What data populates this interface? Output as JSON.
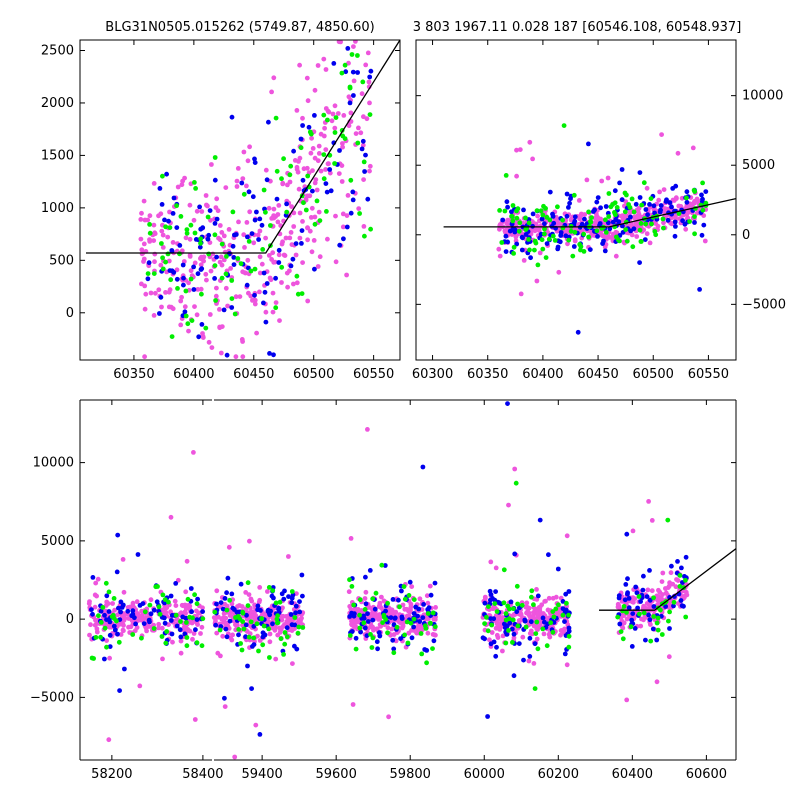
{
  "title_left": "BLG31N0505.015262 (5749.87, 4850.60)",
  "title_right": "3 803 1967.11 0.028 187 [60546.108, 60548.937]",
  "colors": {
    "blue": "#0000ee",
    "green": "#00ee00",
    "magenta": "#ee55dd",
    "model": "#000000"
  },
  "chart_data": [
    {
      "type": "scatter",
      "panel": "top-left",
      "xlim": [
        60305,
        60572
      ],
      "ylim": [
        -450,
        2600
      ],
      "xticks": [
        60350,
        60400,
        60450,
        60500,
        60550
      ],
      "yticks": [
        0,
        500,
        1000,
        1500,
        2000,
        2500
      ],
      "y_axis_side": "left",
      "series": [
        {
          "color": "magenta",
          "x_range": [
            60355,
            60548
          ],
          "count": 430
        },
        {
          "color": "blue",
          "x_range": [
            60360,
            60548
          ],
          "count": 140
        },
        {
          "color": "green",
          "x_range": [
            60360,
            60548
          ],
          "count": 110
        }
      ],
      "model_line": {
        "x": [
          60310,
          60460,
          60572
        ],
        "y": [
          570,
          570,
          2600
        ]
      }
    },
    {
      "type": "scatter",
      "panel": "top-right",
      "xlim": [
        60285,
        60575
      ],
      "ylim": [
        -9000,
        14000
      ],
      "xticks": [
        60300,
        60350,
        60400,
        60450,
        60500,
        60550
      ],
      "yticks": [
        -5000,
        0,
        5000,
        10000
      ],
      "y_axis_side": "right",
      "series": [
        {
          "color": "magenta",
          "x_range": [
            60360,
            60548
          ],
          "count": 500
        },
        {
          "color": "blue",
          "x_range": [
            60360,
            60548
          ],
          "count": 180
        },
        {
          "color": "green",
          "x_range": [
            60360,
            60548
          ],
          "count": 120
        }
      ],
      "model_line": {
        "x": [
          60310,
          60460,
          60575
        ],
        "y": [
          570,
          570,
          2600
        ]
      }
    },
    {
      "type": "scatter",
      "panel": "bottom",
      "segment_xlims": [
        [
          58130,
          58420
        ],
        [
          59270,
          60680
        ]
      ],
      "ylim": [
        -9000,
        14000
      ],
      "xticks": [
        58200,
        58400,
        59400,
        59600,
        59800,
        60000,
        60200,
        60400,
        60600
      ],
      "yticks": [
        -5000,
        0,
        5000,
        10000
      ],
      "seasons": [
        [
          58150,
          58400
        ],
        [
          59270,
          59510
        ],
        [
          59635,
          59870
        ],
        [
          59995,
          60230
        ],
        [
          60360,
          60548
        ]
      ],
      "series": [
        {
          "color": "magenta",
          "per_season": 260
        },
        {
          "color": "blue",
          "per_season": 80
        },
        {
          "color": "green",
          "per_season": 45
        }
      ],
      "model_line": {
        "x": [
          60310,
          60460,
          60680
        ],
        "y": [
          570,
          570,
          4500
        ]
      }
    }
  ]
}
